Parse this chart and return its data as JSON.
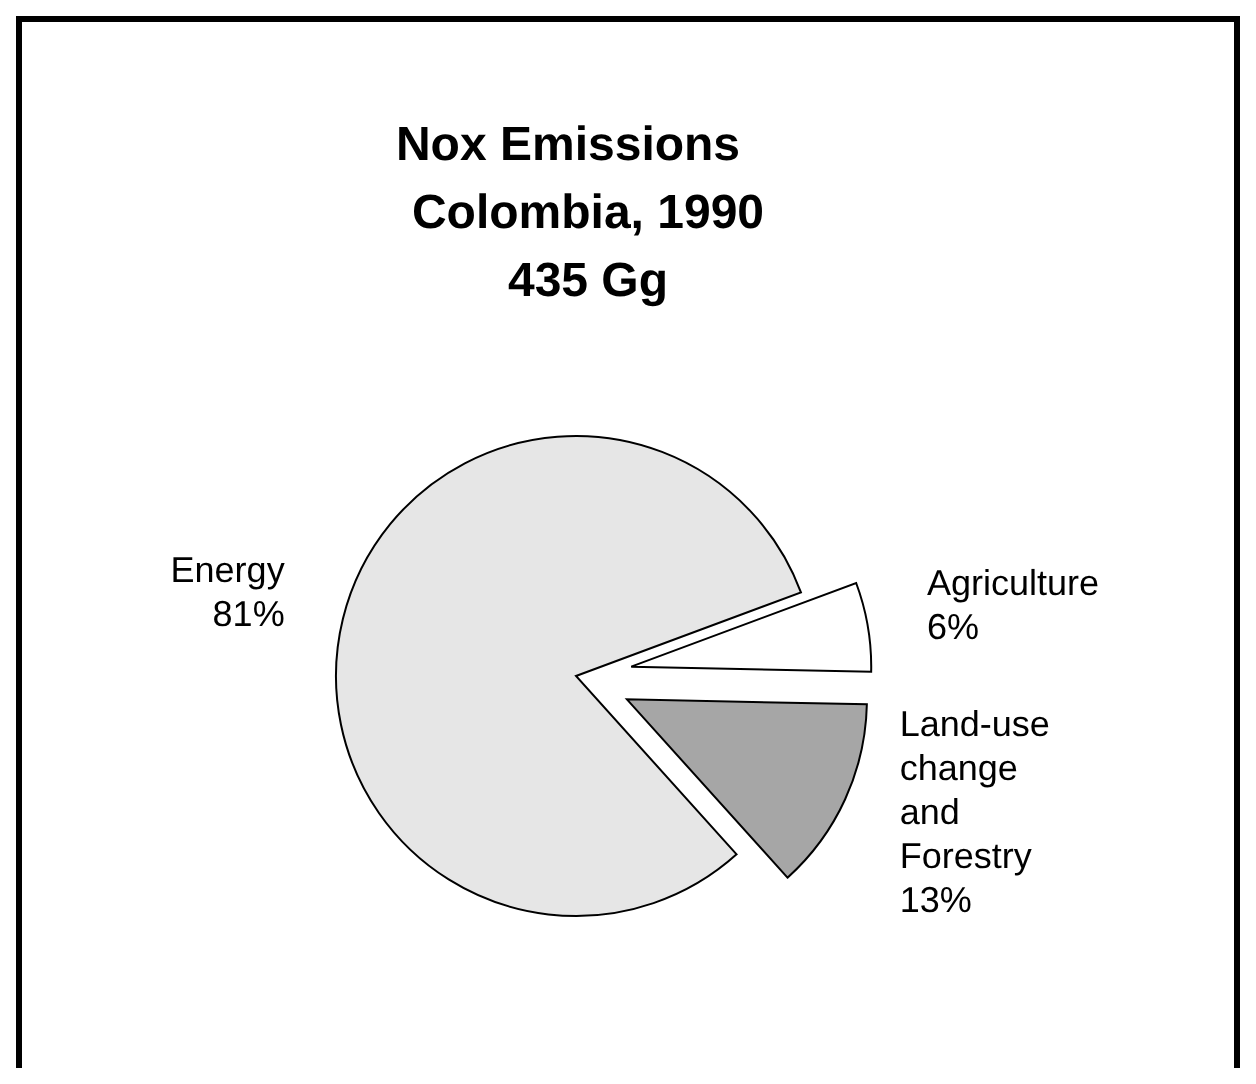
{
  "chart_data": {
    "type": "pie",
    "title": "Nox Emissions",
    "subtitle": "Colombia, 1990\n435 Gg",
    "categories": [
      "Energy",
      "Agriculture",
      "Land-use change and Forestry"
    ],
    "values": [
      81,
      6,
      13
    ],
    "colors": [
      "#e6e6e6",
      "#ffffff",
      "#a6a6a6"
    ],
    "value_labels": [
      "81%",
      "6%",
      "13%"
    ],
    "legend": false
  }
}
